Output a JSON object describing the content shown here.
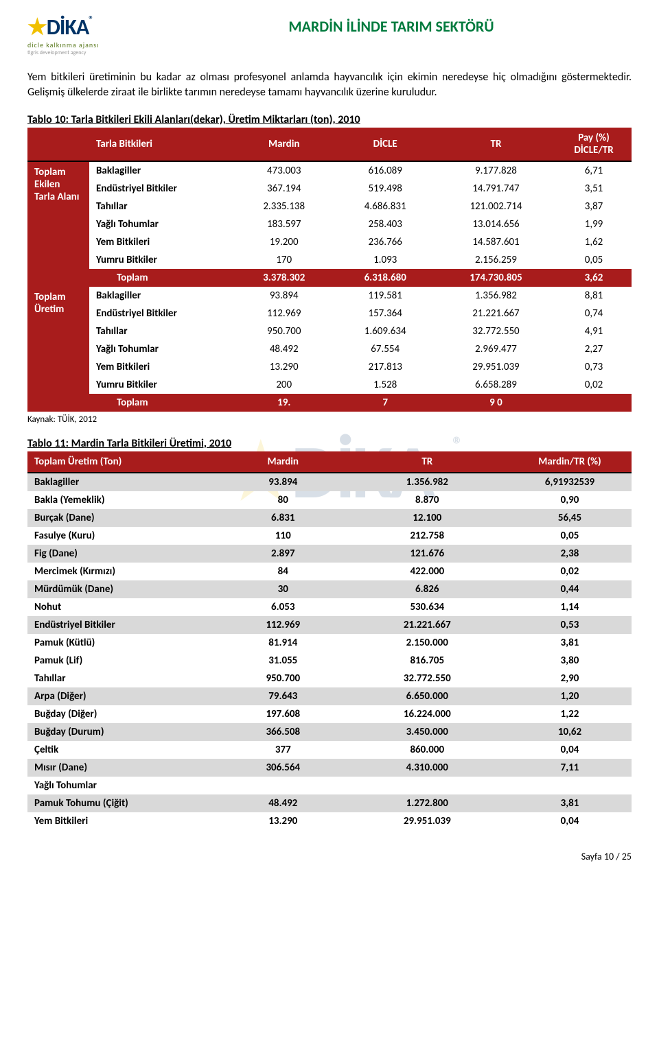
{
  "header": {
    "logo_main": "DİKA",
    "logo_sub": "dicle kalkınma ajansı",
    "logo_sub2": "tigris development agency",
    "title": "MARDİN İLİNDE TARIM SEKTÖRÜ"
  },
  "intro": "Yem bitkileri üretiminin bu kadar az olması profesyonel anlamda hayvancılık için ekimin neredeyse hiç olmadığını göstermektedir. Gelişmiş ülkelerde ziraat ile birlikte tarımın neredeyse tamamı hayvancılık üzerine kuruludur.",
  "table10": {
    "caption": "Tablo 10: Tarla Bitkileri Ekili Alanları(dekar), Üretim Miktarları (ton), 2010",
    "head": {
      "c1": "Tarla Bitkileri",
      "c2": "Mardin",
      "c3": "DİCLE",
      "c4": "TR",
      "c5": "Pay (%) DİCLE/TR"
    },
    "groups": [
      {
        "label": "Toplam Ekilen Tarla Alanı",
        "rows": [
          {
            "name": "Baklagiller",
            "mardin": "473.003",
            "dicle": "616.089",
            "tr": "9.177.828",
            "pay": "6,71"
          },
          {
            "name": "Endüstriyel Bitkiler",
            "mardin": "367.194",
            "dicle": "519.498",
            "tr": "14.791.747",
            "pay": "3,51"
          },
          {
            "name": "Tahıllar",
            "mardin": "2.335.138",
            "dicle": "4.686.831",
            "tr": "121.002.714",
            "pay": "3,87"
          },
          {
            "name": "Yağlı Tohumlar",
            "mardin": "183.597",
            "dicle": "258.403",
            "tr": "13.014.656",
            "pay": "1,99"
          },
          {
            "name": "Yem Bitkileri",
            "mardin": "19.200",
            "dicle": "236.766",
            "tr": "14.587.601",
            "pay": "1,62"
          },
          {
            "name": "Yumru Bitkiler",
            "mardin": "170",
            "dicle": "1.093",
            "tr": "2.156.259",
            "pay": "0,05"
          }
        ],
        "total": {
          "name": "Toplam",
          "mardin": "3.378.302",
          "dicle": "6.318.680",
          "tr": "174.730.805",
          "pay": "3,62"
        }
      },
      {
        "label": "Toplam Üretim",
        "rows": [
          {
            "name": "Baklagiller",
            "mardin": "93.894",
            "dicle": "119.581",
            "tr": "1.356.982",
            "pay": "8,81"
          },
          {
            "name": "Endüstriyel Bitkiler",
            "mardin": "112.969",
            "dicle": "157.364",
            "tr": "21.221.667",
            "pay": "0,74"
          },
          {
            "name": "Tahıllar",
            "mardin": "950.700",
            "dicle": "1.609.634",
            "tr": "32.772.550",
            "pay": "4,91"
          },
          {
            "name": "Yağlı Tohumlar",
            "mardin": "48.492",
            "dicle": "67.554",
            "tr": "2.969.477",
            "pay": "2,27"
          },
          {
            "name": "Yem Bitkileri",
            "mardin": "13.290",
            "dicle": "217.813",
            "tr": "29.951.039",
            "pay": "0,73"
          },
          {
            "name": "Yumru Bitkiler",
            "mardin": "200",
            "dicle": "1.528",
            "tr": "6.658.289",
            "pay": "0,02"
          }
        ],
        "total": {
          "name": "Toplam",
          "mardin": "19.",
          "dicle": "7",
          "tr": "9   0",
          "pay": ""
        }
      }
    ],
    "source": "Kaynak: TÜİK, 2012"
  },
  "table11": {
    "caption": "Tablo 11: Mardin Tarla Bitkileri Üretimi, 2010",
    "head": {
      "c1": "Toplam Üretim (Ton)",
      "c2": "Mardin",
      "c3": "TR",
      "c4": "Mardin/TR (%)"
    },
    "rows": [
      {
        "name": "Baklagiller",
        "mardin": "93.894",
        "tr": "1.356.982",
        "pct": "6,91932539",
        "stripe": true
      },
      {
        "name": "Bakla (Yemeklik)",
        "mardin": "80",
        "tr": "8.870",
        "pct": "0,90",
        "stripe": false
      },
      {
        "name": "Burçak (Dane)",
        "mardin": "6.831",
        "tr": "12.100",
        "pct": "56,45",
        "stripe": true
      },
      {
        "name": "Fasulye (Kuru)",
        "mardin": "110",
        "tr": "212.758",
        "pct": "0,05",
        "stripe": false
      },
      {
        "name": "Fig (Dane)",
        "mardin": "2.897",
        "tr": "121.676",
        "pct": "2,38",
        "stripe": true
      },
      {
        "name": "Mercimek (Kırmızı)",
        "mardin": "84",
        "tr": "422.000",
        "pct": "0,02",
        "stripe": false
      },
      {
        "name": "Mürdümük (Dane)",
        "mardin": "30",
        "tr": "6.826",
        "pct": "0,44",
        "stripe": true
      },
      {
        "name": "Nohut",
        "mardin": "6.053",
        "tr": "530.634",
        "pct": "1,14",
        "stripe": false
      },
      {
        "name": "Endüstriyel Bitkiler",
        "mardin": "112.969",
        "tr": "21.221.667",
        "pct": "0,53",
        "stripe": true
      },
      {
        "name": "Pamuk (Kütlü)",
        "mardin": "81.914",
        "tr": "2.150.000",
        "pct": "3,81",
        "stripe": false
      },
      {
        "name": "Pamuk (Lif)",
        "mardin": "31.055",
        "tr": "816.705",
        "pct": "3,80",
        "stripe": false
      },
      {
        "name": "Tahıllar",
        "mardin": "950.700",
        "tr": "32.772.550",
        "pct": "2,90",
        "stripe": false
      },
      {
        "name": "Arpa (Diğer)",
        "mardin": "79.643",
        "tr": "6.650.000",
        "pct": "1,20",
        "stripe": true
      },
      {
        "name": "Buğday (Diğer)",
        "mardin": "197.608",
        "tr": "16.224.000",
        "pct": "1,22",
        "stripe": false
      },
      {
        "name": "Buğday (Durum)",
        "mardin": "366.508",
        "tr": "3.450.000",
        "pct": "10,62",
        "stripe": true
      },
      {
        "name": "Çeltik",
        "mardin": "377",
        "tr": "860.000",
        "pct": "0,04",
        "stripe": false
      },
      {
        "name": "Mısır (Dane)",
        "mardin": "306.564",
        "tr": "4.310.000",
        "pct": "7,11",
        "stripe": true
      },
      {
        "name": "Yağlı Tohumlar",
        "mardin": "",
        "tr": "",
        "pct": "",
        "stripe": false
      },
      {
        "name": "Pamuk Tohumu (Çiğit)",
        "mardin": "48.492",
        "tr": "1.272.800",
        "pct": "3,81",
        "stripe": true
      },
      {
        "name": "Yem Bitkileri",
        "mardin": "13.290",
        "tr": "29.951.039",
        "pct": "0,04",
        "stripe": false
      }
    ]
  },
  "footer": {
    "page": "Sayfa 10 / 25"
  },
  "watermark": {
    "text": "DİKA",
    "sub": "k a l k ı n m a   a j a n s ı"
  }
}
